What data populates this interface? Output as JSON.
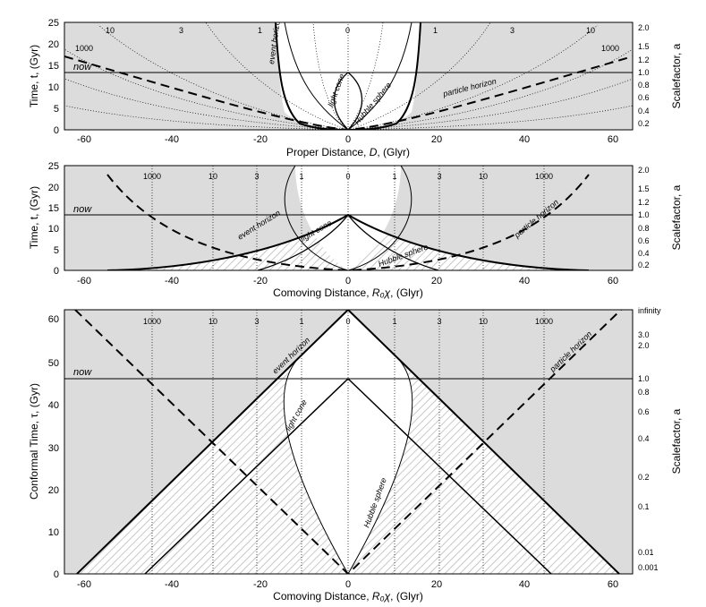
{
  "colors": {
    "background": "#dcdcdc",
    "light_fill": "#ffffff",
    "hatch": "#c8c8c8",
    "line": "#000000"
  },
  "panels": [
    {
      "id": "proper",
      "xlabel_pre": "Proper Distance, ",
      "xlabel_var": "D",
      "xlabel_post": ", (Glyr)",
      "ylabel": "Time, t, (Gyr)",
      "y2label": "Scalefactor, a",
      "x_ticks": [
        "-60",
        "-40",
        "-20",
        "0",
        "20",
        "40",
        "60"
      ],
      "y_ticks": [
        "0",
        "5",
        "10",
        "15",
        "20",
        "25"
      ],
      "y2_ticks": [
        "0.2",
        "0.4",
        "0.6",
        "0.8",
        "1.0",
        "1.2",
        "1.5",
        "2.0"
      ],
      "worldline_labels_left": [
        "10",
        "3",
        "1",
        "1000"
      ],
      "worldline_labels_right": [
        "0",
        "1",
        "3",
        "10",
        "1000"
      ],
      "now_label": "now",
      "curve_labels": {
        "event_horizon": "event horizon",
        "light_cone": "light cone",
        "hubble_sphere": "Hubble sphere",
        "particle_horizon": "particle horizon"
      }
    },
    {
      "id": "comoving",
      "xlabel_pre": "Comoving Distance, ",
      "xlabel_var": "R₀χ",
      "xlabel_post": ", (Glyr)",
      "ylabel": "Time, t, (Gyr)",
      "y2label": "Scalefactor, a",
      "x_ticks": [
        "-60",
        "-40",
        "-20",
        "0",
        "20",
        "40",
        "60"
      ],
      "y_ticks": [
        "0",
        "5",
        "10",
        "15",
        "20",
        "25"
      ],
      "y2_ticks": [
        "0.2",
        "0.4",
        "0.6",
        "0.8",
        "1.0",
        "1.2",
        "1.5",
        "2.0"
      ],
      "worldline_labels": [
        "1000",
        "10",
        "3",
        "1",
        "0",
        "1",
        "3",
        "10",
        "1000"
      ],
      "now_label": "now",
      "curve_labels": {
        "event_horizon": "event horizon",
        "light_cone": "light cone",
        "hubble_sphere": "Hubble sphere",
        "particle_horizon": "particle horizon"
      }
    },
    {
      "id": "conformal",
      "xlabel_pre": "Comoving Distance, ",
      "xlabel_var": "R₀χ",
      "xlabel_post": ", (Glyr)",
      "ylabel": "Conformal Time, τ, (Gyr)",
      "y2label": "Scalefactor, a",
      "x_ticks": [
        "-60",
        "-40",
        "-20",
        "0",
        "20",
        "40",
        "60"
      ],
      "y_ticks": [
        "0",
        "10",
        "20",
        "30",
        "40",
        "50",
        "60"
      ],
      "y2_ticks": [
        "infinity",
        "3.0",
        "2.0",
        "1.0",
        "0.8",
        "0.6",
        "0.4",
        "0.2",
        "0.1",
        "0.01",
        "0.001"
      ],
      "worldline_labels": [
        "1000",
        "10",
        "3",
        "1",
        "0",
        "1",
        "3",
        "10",
        "1000"
      ],
      "now_label": "now",
      "curve_labels": {
        "event_horizon": "event horizon",
        "light_cone": "light cone",
        "hubble_sphere": "Hubble sphere",
        "particle_horizon": "particle horizon"
      }
    }
  ]
}
